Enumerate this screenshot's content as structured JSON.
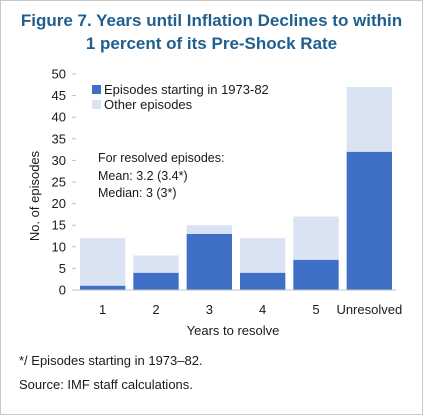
{
  "figure": {
    "title": "Figure 7. Years until Inflation Declines to within\n1 percent of its Pre-Shock Rate",
    "footnote": "*/ Episodes starting in 1973–82.",
    "source": "Source: IMF staff calculations."
  },
  "colors": {
    "title": "#1f5f8f",
    "series_1973_82": "#3f6fc7",
    "series_other": "#d9e3f2",
    "axis": "#bfbfbf",
    "text": "#1a1a1a"
  },
  "chart_data": {
    "type": "bar",
    "stacked": true,
    "categories": [
      "1",
      "2",
      "3",
      "4",
      "5",
      "Unresolved"
    ],
    "series": [
      {
        "name": "Episodes starting in 1973-82",
        "values": [
          1,
          4,
          13,
          4,
          7,
          32
        ]
      },
      {
        "name": "Other episodes",
        "values": [
          11,
          4,
          2,
          8,
          10,
          15
        ]
      }
    ],
    "totals": [
      12,
      8,
      15,
      12,
      17,
      47
    ],
    "xlabel": "Years to resolve",
    "ylabel": "No. of episodes",
    "ylim": [
      0,
      50
    ],
    "yticks": [
      0,
      5,
      10,
      15,
      20,
      25,
      30,
      35,
      40,
      45,
      50
    ],
    "grid": false,
    "legend_position": "top-left",
    "annotation": {
      "lines": [
        "For resolved episodes:",
        "Mean: 3.2 (3.4*)",
        "Median: 3 (3*)"
      ]
    }
  }
}
